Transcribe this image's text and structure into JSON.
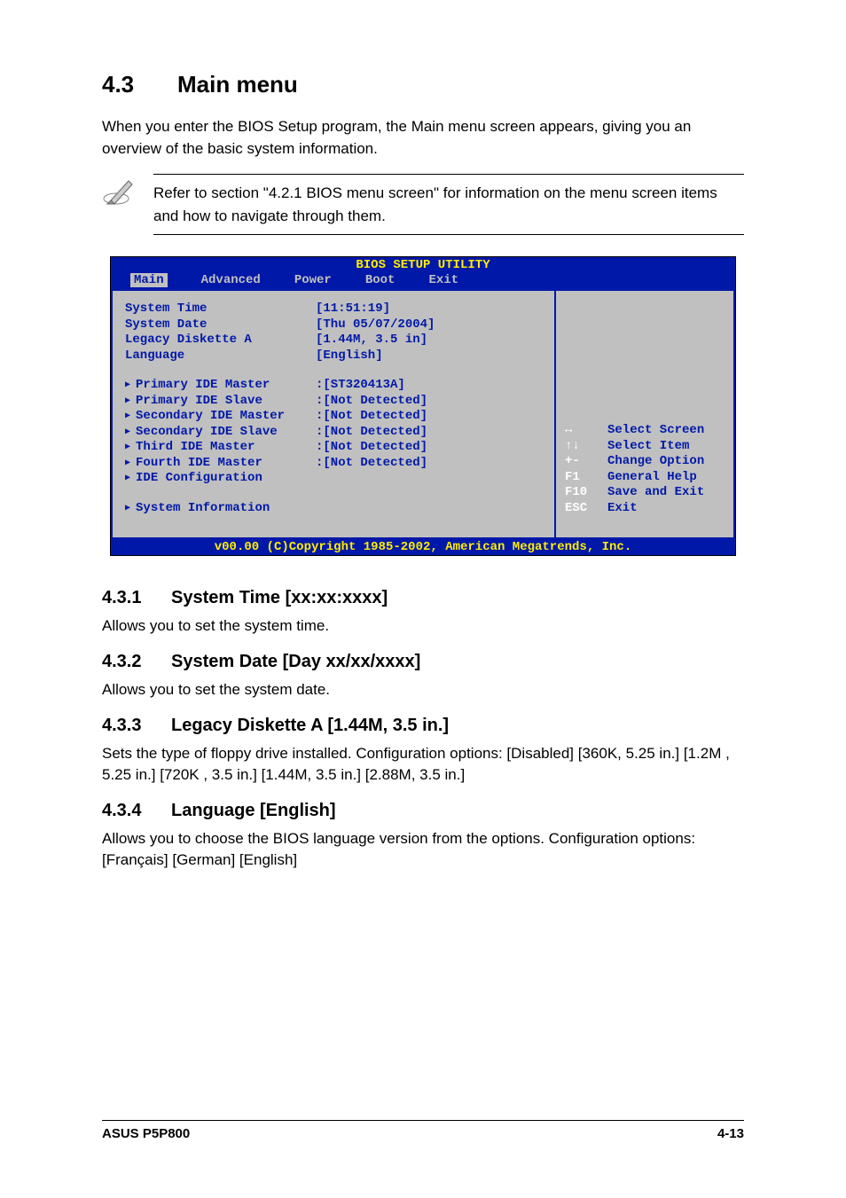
{
  "heading": {
    "num": "4.3",
    "title": "Main menu"
  },
  "intro": "When you enter the BIOS Setup program, the Main menu screen appears, giving you an overview of the basic system information.",
  "note": "Refer to section \"4.2.1  BIOS menu screen\" for information on the menu screen items and how to navigate through them.",
  "bios": {
    "title": "BIOS SETUP UTILITY",
    "tabs": [
      "Main",
      "Advanced",
      "Power",
      "Boot",
      "Exit"
    ],
    "active_tab": 0,
    "plain_rows": [
      {
        "label": "System Time",
        "value": "[11:51:19]"
      },
      {
        "label": "System Date",
        "value": "[Thu 05/07/2004]"
      },
      {
        "label": "Legacy Diskette A",
        "value": "[1.44M, 3.5 in]"
      },
      {
        "label": "Language",
        "value": "[English]"
      }
    ],
    "arrow_rows": [
      {
        "label": "Primary IDE Master",
        "value": ":[ST320413A]"
      },
      {
        "label": "Primary IDE Slave",
        "value": ":[Not Detected]"
      },
      {
        "label": "Secondary IDE Master",
        "value": ":[Not Detected]"
      },
      {
        "label": "Secondary IDE Slave",
        "value": ":[Not Detected]"
      },
      {
        "label": "Third IDE Master",
        "value": ":[Not Detected]"
      },
      {
        "label": "Fourth IDE Master",
        "value": ":[Not Detected]"
      },
      {
        "label": "IDE Configuration",
        "value": ""
      }
    ],
    "arrow_rows2": [
      {
        "label": "System Information",
        "value": ""
      }
    ],
    "help": [
      {
        "key": "↔",
        "text": "Select Screen"
      },
      {
        "key": "↑↓",
        "text": "Select Item"
      },
      {
        "key": "+-",
        "text": "Change Option"
      },
      {
        "key": "F1",
        "text": "General Help"
      },
      {
        "key": "F10",
        "text": "Save and Exit"
      },
      {
        "key": "ESC",
        "text": "Exit"
      }
    ],
    "footer": "v00.00 (C)Copyright 1985-2002, American Megatrends, Inc."
  },
  "subs": [
    {
      "num": "4.3.1",
      "title": "System Time [xx:xx:xxxx]",
      "body": "Allows you to set the system time."
    },
    {
      "num": "4.3.2",
      "title": "System Date [Day xx/xx/xxxx]",
      "body": "Allows you to set the system date."
    },
    {
      "num": "4.3.3",
      "title": "Legacy Diskette A [1.44M, 3.5 in.]",
      "body": "Sets the type of floppy drive installed. Configuration options: [Disabled] [360K, 5.25 in.] [1.2M , 5.25 in.] [720K , 3.5 in.] [1.44M, 3.5 in.] [2.88M, 3.5 in.]"
    },
    {
      "num": "4.3.4",
      "title": "Language [English]",
      "body": "Allows you to choose the BIOS language version from the options. Configuration options: [Français] [German] [English]"
    }
  ],
  "footer": {
    "left": "ASUS P5P800",
    "right": "4-13"
  }
}
